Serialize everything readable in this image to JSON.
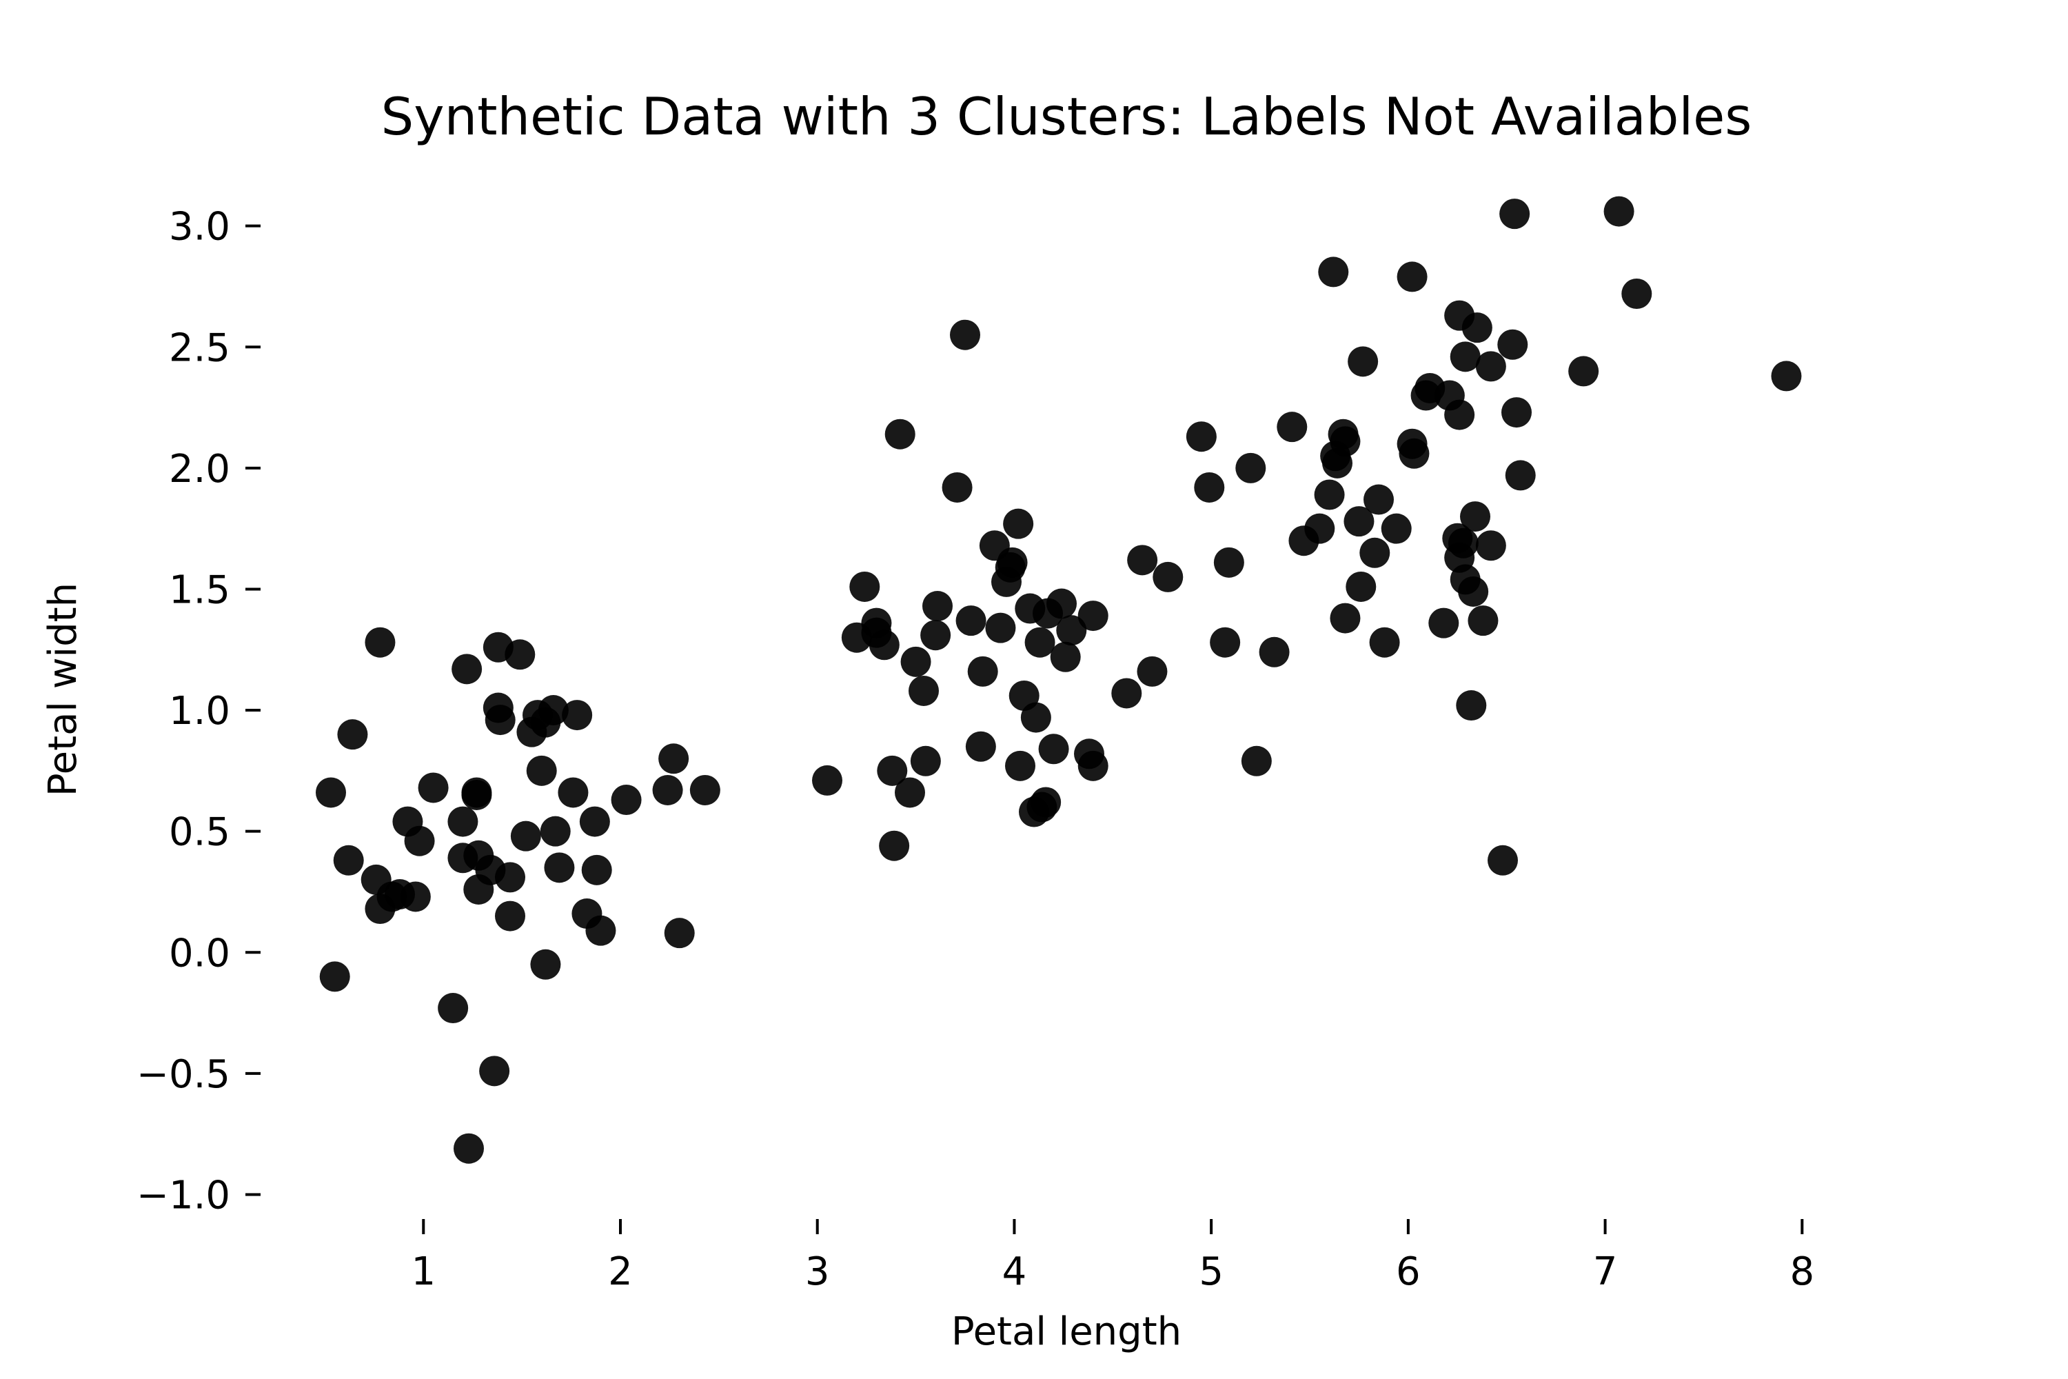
{
  "chart_data": {
    "type": "scatter",
    "title": "Synthetic Data with 3 Clusters: Labels Not Availables",
    "xlabel": "Petal length",
    "ylabel": "Petal width",
    "xlim": [
      0.25,
      8.3
    ],
    "ylim": [
      -1.05,
      3.15
    ],
    "xticks": [
      1,
      2,
      3,
      4,
      5,
      6,
      7,
      8
    ],
    "xtick_labels": [
      "1",
      "2",
      "3",
      "4",
      "5",
      "6",
      "7",
      "8"
    ],
    "yticks": [
      -1.0,
      -0.5,
      0.0,
      0.5,
      1.0,
      1.5,
      2.0,
      2.5,
      3.0
    ],
    "ytick_labels": [
      "−1.0",
      "−0.5",
      "0.0",
      "0.5",
      "1.0",
      "1.5",
      "2.0",
      "2.5",
      "3.0"
    ],
    "grid": false,
    "legend": "none",
    "color": "#111111",
    "series": [
      {
        "points": [
          [
            0.53,
            0.66
          ],
          [
            0.55,
            -0.1
          ],
          [
            0.62,
            0.38
          ],
          [
            0.64,
            0.9
          ],
          [
            0.78,
            1.28
          ],
          [
            0.76,
            0.3
          ],
          [
            0.78,
            0.18
          ],
          [
            0.84,
            0.23
          ],
          [
            0.88,
            0.24
          ],
          [
            0.92,
            0.54
          ],
          [
            0.96,
            0.23
          ],
          [
            0.98,
            0.46
          ],
          [
            1.05,
            0.68
          ],
          [
            1.15,
            -0.23
          ],
          [
            1.2,
            0.54
          ],
          [
            1.2,
            0.39
          ],
          [
            1.22,
            1.17
          ],
          [
            1.23,
            -0.81
          ],
          [
            1.27,
            0.65
          ],
          [
            1.27,
            0.66
          ],
          [
            1.28,
            0.26
          ],
          [
            1.28,
            0.4
          ],
          [
            1.34,
            0.34
          ],
          [
            1.36,
            -0.49
          ],
          [
            1.38,
            1.26
          ],
          [
            1.38,
            1.01
          ],
          [
            1.39,
            0.96
          ],
          [
            1.44,
            0.31
          ],
          [
            1.44,
            0.15
          ],
          [
            1.49,
            1.23
          ],
          [
            1.52,
            0.48
          ],
          [
            1.55,
            0.91
          ],
          [
            1.58,
            0.98
          ],
          [
            1.6,
            0.75
          ],
          [
            1.62,
            0.95
          ],
          [
            1.62,
            -0.05
          ],
          [
            1.66,
            1.0
          ],
          [
            1.67,
            0.5
          ],
          [
            1.69,
            0.35
          ],
          [
            1.76,
            0.66
          ],
          [
            1.78,
            0.98
          ],
          [
            1.83,
            0.16
          ],
          [
            1.87,
            0.54
          ],
          [
            1.88,
            0.34
          ],
          [
            1.9,
            0.09
          ],
          [
            2.03,
            0.63
          ],
          [
            2.24,
            0.67
          ],
          [
            2.27,
            0.8
          ],
          [
            2.3,
            0.08
          ],
          [
            2.43,
            0.67
          ]
        ]
      },
      {
        "points": [
          [
            3.05,
            0.71
          ],
          [
            3.2,
            1.3
          ],
          [
            3.24,
            1.51
          ],
          [
            3.3,
            1.32
          ],
          [
            3.3,
            1.36
          ],
          [
            3.34,
            1.27
          ],
          [
            3.38,
            0.75
          ],
          [
            3.39,
            0.44
          ],
          [
            3.42,
            2.14
          ],
          [
            3.47,
            0.66
          ],
          [
            3.5,
            1.2
          ],
          [
            3.54,
            1.08
          ],
          [
            3.55,
            0.79
          ],
          [
            3.6,
            1.31
          ],
          [
            3.61,
            1.43
          ],
          [
            3.71,
            1.92
          ],
          [
            3.75,
            2.55
          ],
          [
            3.78,
            1.37
          ],
          [
            3.83,
            0.85
          ],
          [
            3.84,
            1.16
          ],
          [
            3.9,
            1.68
          ],
          [
            3.93,
            1.34
          ],
          [
            3.96,
            1.53
          ],
          [
            3.98,
            1.59
          ],
          [
            3.99,
            1.61
          ],
          [
            4.02,
            1.77
          ],
          [
            4.03,
            0.77
          ],
          [
            4.05,
            1.06
          ],
          [
            4.08,
            1.42
          ],
          [
            4.1,
            0.58
          ],
          [
            4.11,
            0.97
          ],
          [
            4.13,
            1.28
          ],
          [
            4.14,
            0.6
          ],
          [
            4.16,
            0.62
          ],
          [
            4.17,
            1.4
          ],
          [
            4.2,
            0.84
          ],
          [
            4.24,
            1.44
          ],
          [
            4.26,
            1.22
          ],
          [
            4.29,
            1.33
          ],
          [
            4.38,
            0.82
          ],
          [
            4.4,
            0.77
          ],
          [
            4.4,
            1.39
          ],
          [
            4.57,
            1.07
          ],
          [
            4.65,
            1.62
          ],
          [
            4.7,
            1.16
          ],
          [
            4.78,
            1.55
          ]
        ]
      },
      {
        "points": [
          [
            4.95,
            2.13
          ],
          [
            4.99,
            1.92
          ],
          [
            5.07,
            1.28
          ],
          [
            5.09,
            1.61
          ],
          [
            5.2,
            2.0
          ],
          [
            5.23,
            0.79
          ],
          [
            5.32,
            1.24
          ],
          [
            5.41,
            2.17
          ],
          [
            5.47,
            1.7
          ],
          [
            5.55,
            1.75
          ],
          [
            5.6,
            1.89
          ],
          [
            5.62,
            2.81
          ],
          [
            5.63,
            2.05
          ],
          [
            5.64,
            2.02
          ],
          [
            5.67,
            2.14
          ],
          [
            5.68,
            2.11
          ],
          [
            5.68,
            1.38
          ],
          [
            5.75,
            1.78
          ],
          [
            5.76,
            1.51
          ],
          [
            5.77,
            2.44
          ],
          [
            5.83,
            1.65
          ],
          [
            5.85,
            1.87
          ],
          [
            5.88,
            1.28
          ],
          [
            5.94,
            1.75
          ],
          [
            6.02,
            2.79
          ],
          [
            6.02,
            2.1
          ],
          [
            6.03,
            2.06
          ],
          [
            6.09,
            2.3
          ],
          [
            6.11,
            2.33
          ],
          [
            6.18,
            1.36
          ],
          [
            6.21,
            2.3
          ],
          [
            6.25,
            1.71
          ],
          [
            6.26,
            2.63
          ],
          [
            6.26,
            2.22
          ],
          [
            6.26,
            1.63
          ],
          [
            6.28,
            1.69
          ],
          [
            6.29,
            2.46
          ],
          [
            6.29,
            1.54
          ],
          [
            6.32,
            1.02
          ],
          [
            6.33,
            1.49
          ],
          [
            6.35,
            2.58
          ],
          [
            6.34,
            1.8
          ],
          [
            6.38,
            1.37
          ],
          [
            6.42,
            2.42
          ],
          [
            6.42,
            1.68
          ],
          [
            6.48,
            0.38
          ],
          [
            6.53,
            2.51
          ],
          [
            6.54,
            3.05
          ],
          [
            6.55,
            2.23
          ],
          [
            6.57,
            1.97
          ],
          [
            6.89,
            2.4
          ],
          [
            7.07,
            3.06
          ],
          [
            7.16,
            2.72
          ],
          [
            7.92,
            2.38
          ]
        ]
      }
    ]
  }
}
